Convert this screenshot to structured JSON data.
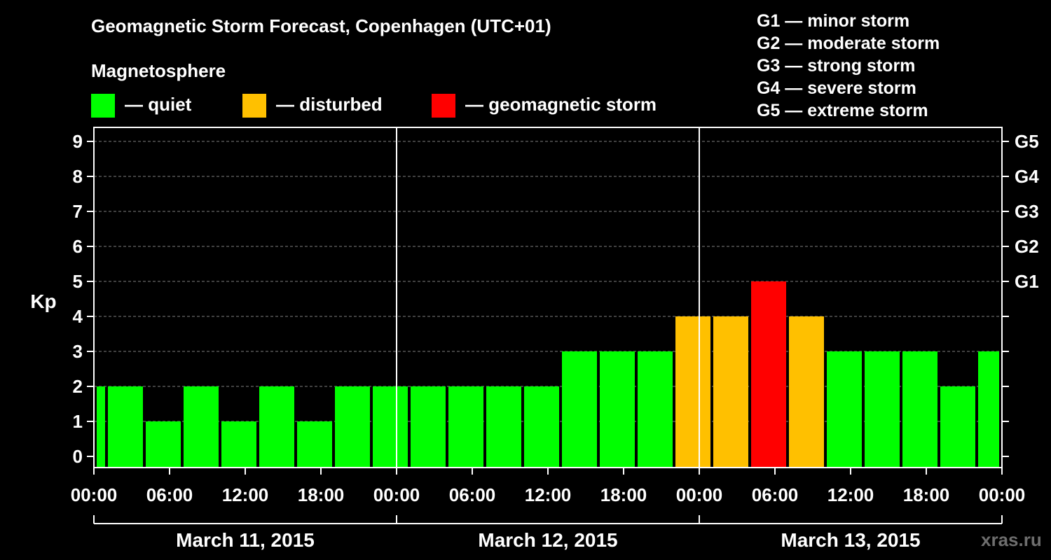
{
  "title": "Geomagnetic Storm Forecast, Copenhagen (UTC+01)",
  "legend": {
    "heading": "Magnetosphere",
    "items": [
      {
        "label": "— quiet",
        "color": "#00ff00"
      },
      {
        "label": "— disturbed",
        "color": "#ffc000"
      },
      {
        "label": "— geomagnetic storm",
        "color": "#ff0000"
      }
    ]
  },
  "g_scale": [
    "G1 — minor storm",
    "G2 — moderate storm",
    "G3 — strong storm",
    "G4 — severe storm",
    "G5 — extreme storm"
  ],
  "watermark": "xras.ru",
  "colors": {
    "quiet": "#00ff00",
    "disturbed": "#ffc000",
    "storm": "#ff0000",
    "background": "#000000",
    "grid": "#808080"
  },
  "chart_data": {
    "type": "bar",
    "ylabel": "Kp",
    "ylim": [
      0,
      9
    ],
    "yticks": [
      "0",
      "1",
      "2",
      "3",
      "4",
      "5",
      "6",
      "7",
      "8",
      "9"
    ],
    "right_axis_ticks": [
      {
        "kp": 5,
        "label": "G1"
      },
      {
        "kp": 6,
        "label": "G2"
      },
      {
        "kp": 7,
        "label": "G3"
      },
      {
        "kp": 8,
        "label": "G4"
      },
      {
        "kp": 9,
        "label": "G5"
      }
    ],
    "grid_horizontal": true,
    "x_start": "2015-03-11 00:00",
    "x_end": "2015-03-14 00:00",
    "x_tick_labels": [
      "00:00",
      "06:00",
      "12:00",
      "18:00",
      "00:00",
      "06:00",
      "12:00",
      "18:00",
      "00:00",
      "06:00",
      "12:00",
      "18:00",
      "00:00"
    ],
    "days": [
      "March 11, 2015",
      "March 12, 2015",
      "March 13, 2015"
    ],
    "bars": [
      {
        "start": "2015-03-10 22:00",
        "end": "2015-03-11 01:00",
        "kp": 2,
        "level": "quiet"
      },
      {
        "start": "2015-03-11 01:00",
        "end": "2015-03-11 04:00",
        "kp": 2,
        "level": "quiet"
      },
      {
        "start": "2015-03-11 04:00",
        "end": "2015-03-11 07:00",
        "kp": 1,
        "level": "quiet"
      },
      {
        "start": "2015-03-11 07:00",
        "end": "2015-03-11 10:00",
        "kp": 2,
        "level": "quiet"
      },
      {
        "start": "2015-03-11 10:00",
        "end": "2015-03-11 13:00",
        "kp": 1,
        "level": "quiet"
      },
      {
        "start": "2015-03-11 13:00",
        "end": "2015-03-11 16:00",
        "kp": 2,
        "level": "quiet"
      },
      {
        "start": "2015-03-11 16:00",
        "end": "2015-03-11 19:00",
        "kp": 1,
        "level": "quiet"
      },
      {
        "start": "2015-03-11 19:00",
        "end": "2015-03-11 22:00",
        "kp": 2,
        "level": "quiet"
      },
      {
        "start": "2015-03-11 22:00",
        "end": "2015-03-12 01:00",
        "kp": 2,
        "level": "quiet"
      },
      {
        "start": "2015-03-12 01:00",
        "end": "2015-03-12 04:00",
        "kp": 2,
        "level": "quiet"
      },
      {
        "start": "2015-03-12 04:00",
        "end": "2015-03-12 07:00",
        "kp": 2,
        "level": "quiet"
      },
      {
        "start": "2015-03-12 07:00",
        "end": "2015-03-12 10:00",
        "kp": 2,
        "level": "quiet"
      },
      {
        "start": "2015-03-12 10:00",
        "end": "2015-03-12 13:00",
        "kp": 2,
        "level": "quiet"
      },
      {
        "start": "2015-03-12 13:00",
        "end": "2015-03-12 16:00",
        "kp": 3,
        "level": "quiet"
      },
      {
        "start": "2015-03-12 16:00",
        "end": "2015-03-12 19:00",
        "kp": 3,
        "level": "quiet"
      },
      {
        "start": "2015-03-12 19:00",
        "end": "2015-03-12 22:00",
        "kp": 3,
        "level": "quiet"
      },
      {
        "start": "2015-03-12 22:00",
        "end": "2015-03-13 01:00",
        "kp": 4,
        "level": "disturbed"
      },
      {
        "start": "2015-03-13 01:00",
        "end": "2015-03-13 04:00",
        "kp": 4,
        "level": "disturbed"
      },
      {
        "start": "2015-03-13 04:00",
        "end": "2015-03-13 07:00",
        "kp": 5,
        "level": "storm"
      },
      {
        "start": "2015-03-13 07:00",
        "end": "2015-03-13 10:00",
        "kp": 4,
        "level": "disturbed"
      },
      {
        "start": "2015-03-13 10:00",
        "end": "2015-03-13 13:00",
        "kp": 3,
        "level": "quiet"
      },
      {
        "start": "2015-03-13 13:00",
        "end": "2015-03-13 16:00",
        "kp": 3,
        "level": "quiet"
      },
      {
        "start": "2015-03-13 16:00",
        "end": "2015-03-13 19:00",
        "kp": 3,
        "level": "quiet"
      },
      {
        "start": "2015-03-13 19:00",
        "end": "2015-03-13 22:00",
        "kp": 2,
        "level": "quiet"
      },
      {
        "start": "2015-03-13 22:00",
        "end": "2015-03-14 01:00",
        "kp": 3,
        "level": "quiet"
      }
    ]
  }
}
